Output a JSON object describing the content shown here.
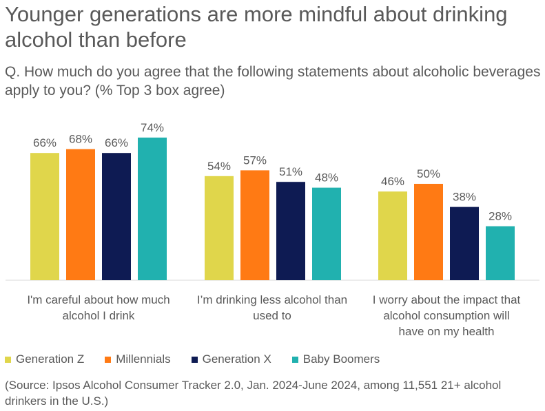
{
  "title": "Younger generations are more mindful about drinking alcohol than before",
  "subtitle": "Q. How much do you agree that the following statements about alcoholic beverages apply to you? (% Top 3 box agree)",
  "source": "(Source: Ipsos Alcohol Consumer Tracker 2.0, Jan. 2024-June 2024, among 11,551 21+ alcohol drinkers in the U.S.)",
  "chart_data": {
    "type": "bar",
    "categories": [
      "I'm careful about how much alcohol I drink",
      "I’m drinking less alcohol than used to",
      "I worry about the impact that alcohol consumption will have on my health"
    ],
    "series": [
      {
        "name": "Generation Z",
        "color": "#E0D64B",
        "values": [
          66,
          54,
          46
        ],
        "labels": [
          "66%",
          "54%",
          "46%"
        ]
      },
      {
        "name": "Millennials",
        "color": "#FF7A14",
        "values": [
          68,
          57,
          50
        ],
        "labels": [
          "68%",
          "57%",
          "50%"
        ]
      },
      {
        "name": "Generation X",
        "color": "#0E1B53",
        "values": [
          66,
          51,
          38
        ],
        "labels": [
          "66%",
          "51%",
          "38%"
        ]
      },
      {
        "name": "Baby Boomers",
        "color": "#21B1AF",
        "values": [
          74,
          48,
          28
        ],
        "labels": [
          "74%",
          "48%",
          "28%"
        ]
      }
    ],
    "ylim": [
      0,
      80
    ],
    "legend_position": "bottom-left",
    "grid": false
  }
}
